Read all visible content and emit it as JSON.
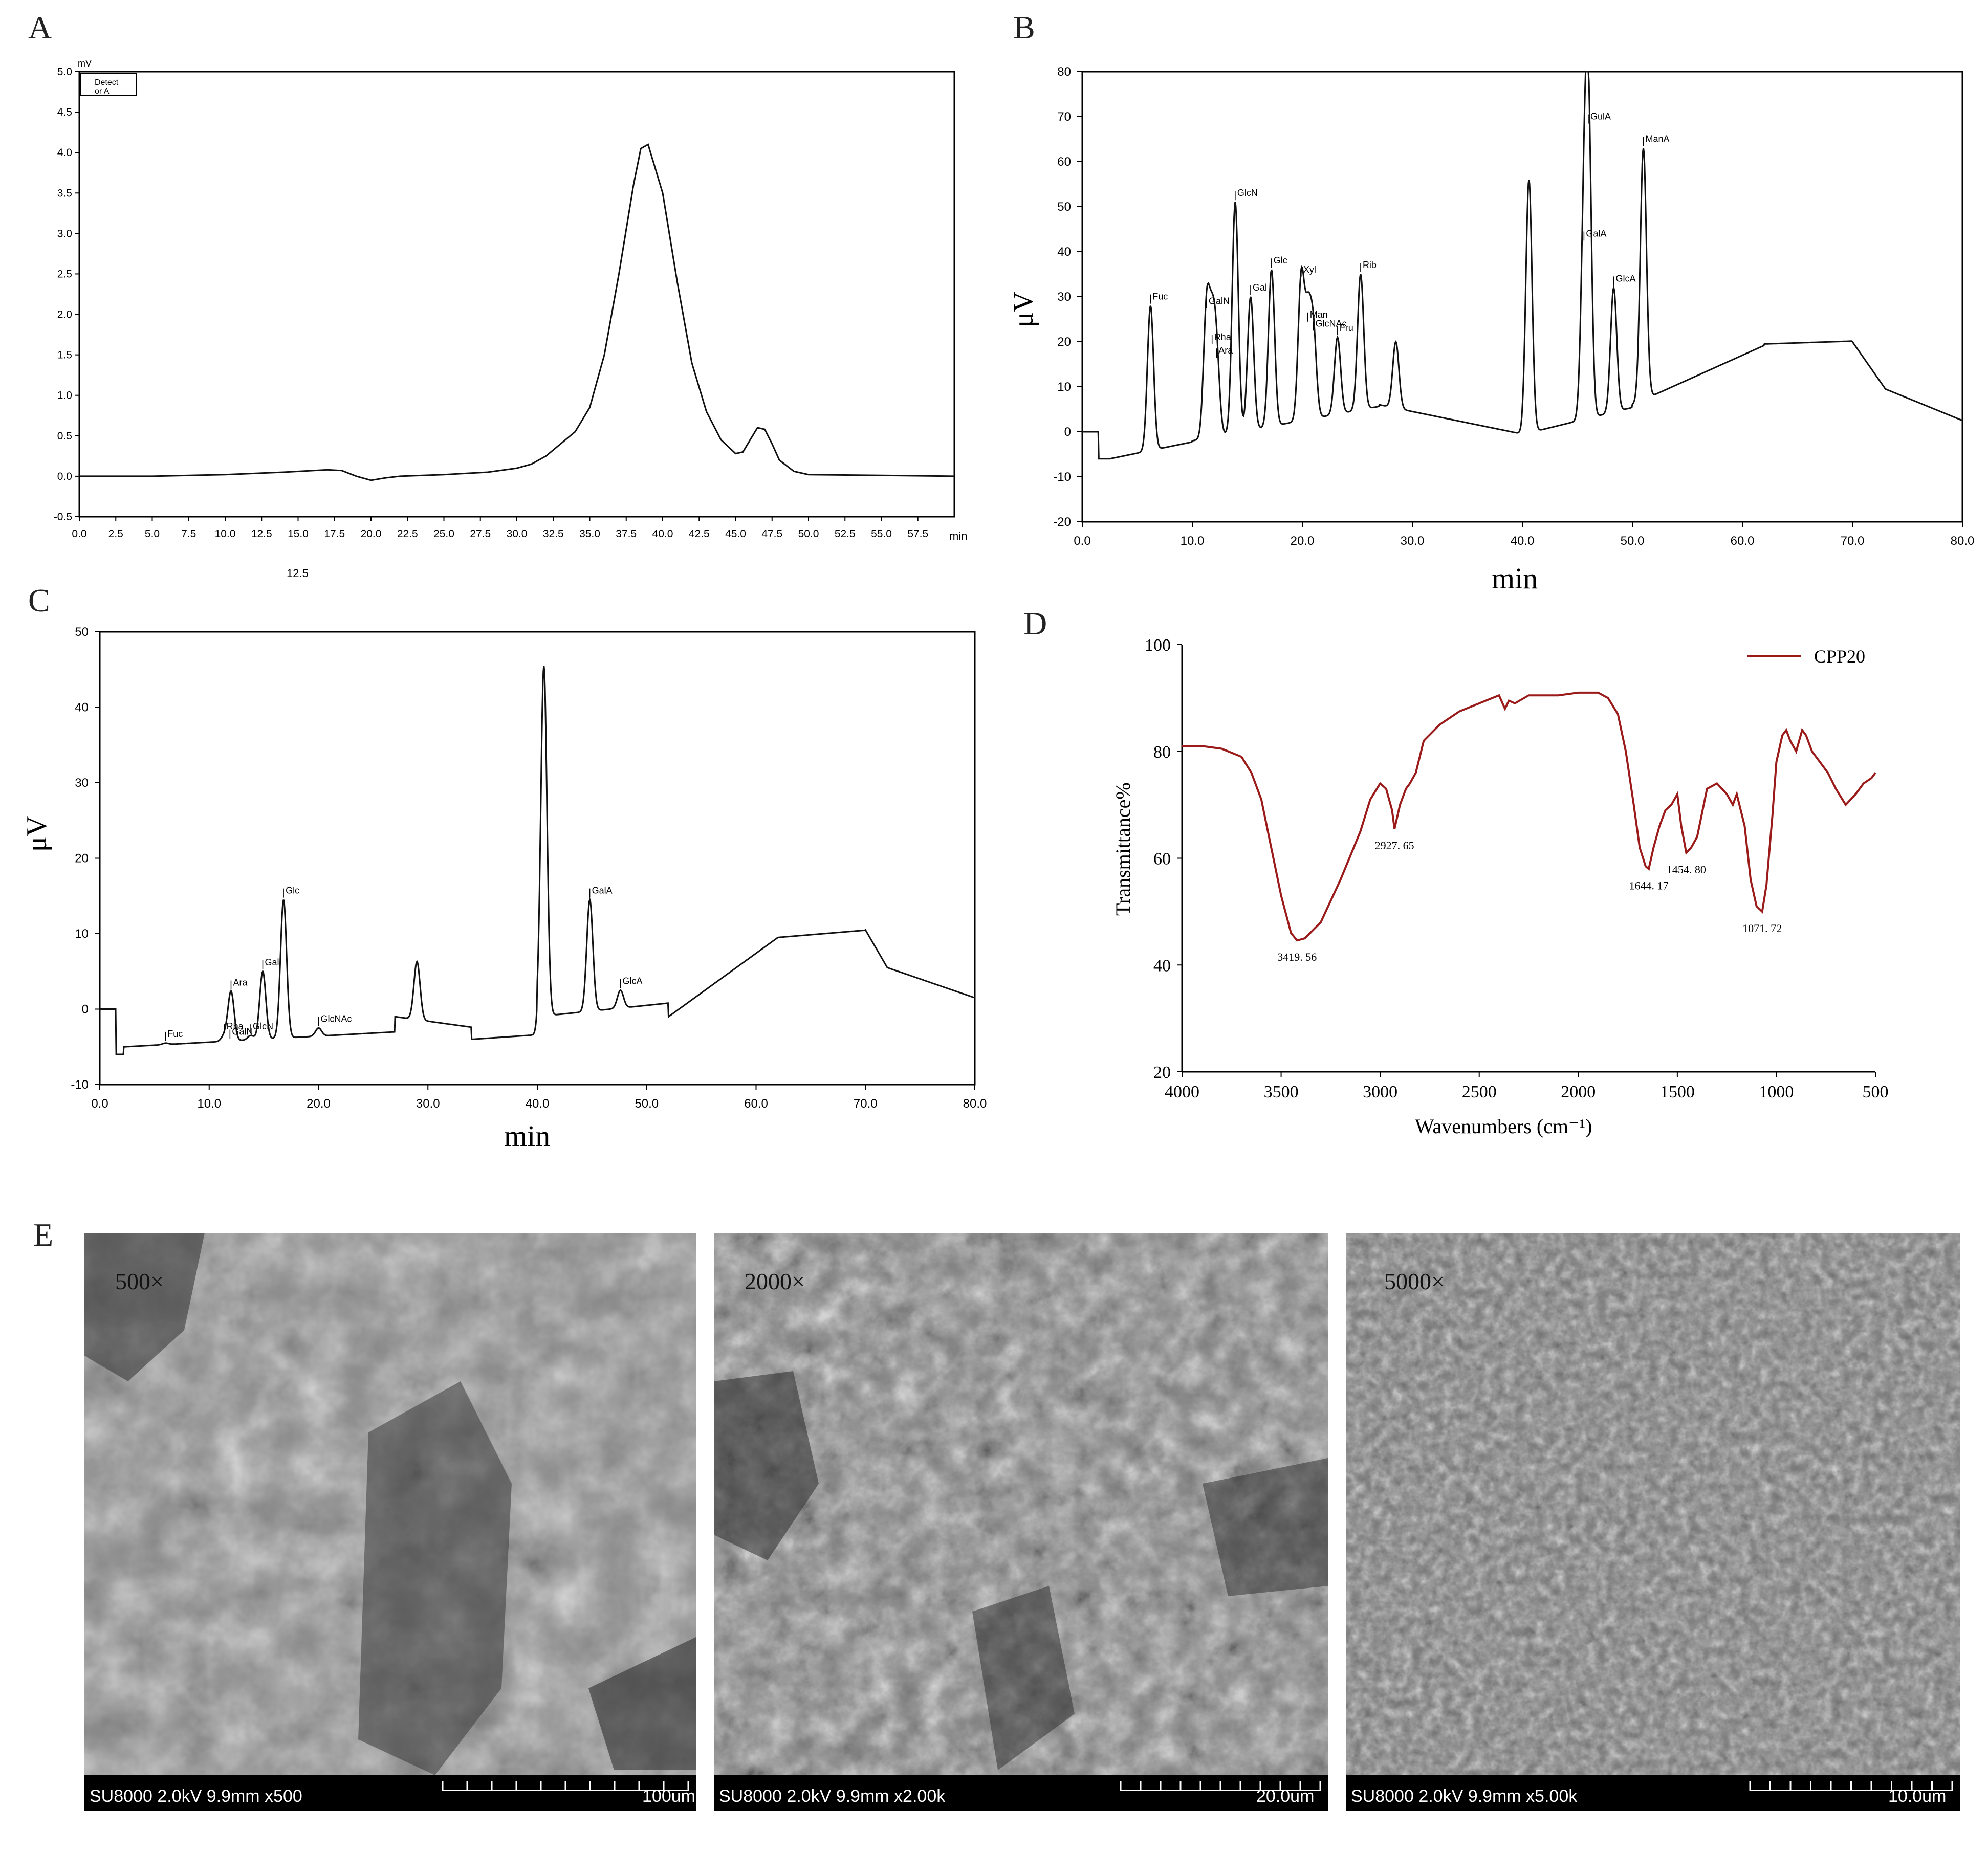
{
  "panels": {
    "A": "A",
    "B": "B",
    "C": "C",
    "D": "D",
    "E": "E"
  },
  "chart_data": [
    {
      "id": "A",
      "type": "line",
      "title": "",
      "xlabel": "min",
      "ylabel": "",
      "extra_label": "12.5",
      "unit_corner": "mV",
      "legend_box": [
        "Detect",
        "or A"
      ],
      "xlim": [
        0,
        60
      ],
      "ylim": [
        -0.5,
        5.0
      ],
      "x_ticks": [
        "0.0",
        "2.5",
        "5.0",
        "7.5",
        "10.0",
        "12.5",
        "15.0",
        "17.5",
        "20.0",
        "22.5",
        "25.0",
        "27.5",
        "30.0",
        "32.5",
        "35.0",
        "37.5",
        "40.0",
        "42.5",
        "45.0",
        "47.5",
        "50.0",
        "52.5",
        "55.0",
        "57.5"
      ],
      "y_ticks": [
        "-0.5",
        "0.0",
        "0.5",
        "1.0",
        "1.5",
        "2.0",
        "2.5",
        "3.0",
        "3.5",
        "4.0",
        "4.5",
        "5.0"
      ],
      "series": [
        {
          "x": [
            0,
            5,
            10,
            14,
            17,
            18,
            19,
            20,
            21,
            22,
            25,
            28,
            30,
            31,
            32,
            33,
            34,
            35,
            36,
            37,
            38,
            38.5,
            39,
            40,
            41,
            42,
            43,
            44,
            45,
            45.5,
            46,
            46.5,
            47,
            47.5,
            48,
            49,
            50,
            55,
            60
          ],
          "y": [
            0.0,
            0.0,
            0.02,
            0.05,
            0.08,
            0.07,
            0.0,
            -0.05,
            -0.02,
            0.0,
            0.02,
            0.05,
            0.1,
            0.15,
            0.25,
            0.4,
            0.55,
            0.85,
            1.5,
            2.5,
            3.6,
            4.05,
            4.1,
            3.5,
            2.4,
            1.4,
            0.8,
            0.45,
            0.28,
            0.3,
            0.45,
            0.6,
            0.58,
            0.4,
            0.2,
            0.06,
            0.02,
            0.01,
            0.0
          ]
        }
      ]
    },
    {
      "id": "B",
      "type": "line",
      "title": "",
      "xlabel": "min",
      "ylabel": "μV",
      "xlim": [
        0,
        80
      ],
      "ylim": [
        -20,
        80
      ],
      "x_ticks": [
        "0.0",
        "10.0",
        "20.0",
        "30.0",
        "40.0",
        "50.0",
        "60.0",
        "70.0",
        "80.0"
      ],
      "y_ticks": [
        "-20",
        "-10",
        "0",
        "10",
        "20",
        "30",
        "40",
        "50",
        "60",
        "70",
        "80"
      ],
      "peaks": [
        {
          "label": "Fuc",
          "x": 6.2,
          "y": 28
        },
        {
          "label": "GalN",
          "x": 11.3,
          "y": 27
        },
        {
          "label": "Rha",
          "x": 11.8,
          "y": 19
        },
        {
          "label": "Ara",
          "x": 12.2,
          "y": 16
        },
        {
          "label": "GlcN",
          "x": 13.9,
          "y": 51
        },
        {
          "label": "Gal",
          "x": 15.3,
          "y": 30
        },
        {
          "label": "Glc",
          "x": 17.2,
          "y": 36
        },
        {
          "label": "Xyl",
          "x": 19.9,
          "y": 34
        },
        {
          "label": "Man",
          "x": 20.5,
          "y": 24
        },
        {
          "label": "GlcNAc",
          "x": 21.0,
          "y": 22
        },
        {
          "label": "Fru",
          "x": 23.2,
          "y": 21
        },
        {
          "label": "Rib",
          "x": 25.3,
          "y": 35
        },
        {
          "label": "GalA",
          "x": 45.6,
          "y": 42
        },
        {
          "label": "GulA",
          "x": 46.0,
          "y": 68
        },
        {
          "label": "GlcA",
          "x": 48.3,
          "y": 32
        },
        {
          "label": "ManA",
          "x": 51.0,
          "y": 63
        }
      ],
      "unlabeled_peaks": [
        {
          "x": 40.6,
          "y": 56
        },
        {
          "x": 28.5,
          "y": 20
        }
      ]
    },
    {
      "id": "C",
      "type": "line",
      "title": "",
      "xlabel": "min",
      "ylabel": "μV",
      "xlim": [
        0,
        80
      ],
      "ylim": [
        -10,
        50
      ],
      "x_ticks": [
        "0.0",
        "10.0",
        "20.0",
        "30.0",
        "40.0",
        "50.0",
        "60.0",
        "70.0",
        "80.0"
      ],
      "y_ticks": [
        "-10",
        "0",
        "10",
        "20",
        "30",
        "40",
        "50"
      ],
      "peaks": [
        {
          "label": "Fuc",
          "x": 6.0,
          "y": -4.5
        },
        {
          "label": "Rha",
          "x": 11.4,
          "y": -3.5
        },
        {
          "label": "GalN",
          "x": 11.9,
          "y": -4.2
        },
        {
          "label": "Ara",
          "x": 12.0,
          "y": 2.3
        },
        {
          "label": "GlcN",
          "x": 13.8,
          "y": -3.5
        },
        {
          "label": "Gal",
          "x": 14.9,
          "y": 5.0
        },
        {
          "label": "Glc",
          "x": 16.8,
          "y": 14.5
        },
        {
          "label": "GlcNAc",
          "x": 20.0,
          "y": -2.5
        },
        {
          "label": "GalA",
          "x": 44.8,
          "y": 14.5
        },
        {
          "label": "GlcA",
          "x": 47.6,
          "y": 2.5
        }
      ],
      "unlabeled_peaks": [
        {
          "x": 40.6,
          "y": 45.5
        },
        {
          "x": 29.0,
          "y": 6.3
        }
      ]
    },
    {
      "id": "D",
      "type": "line",
      "title": "",
      "xlabel": "Wavenumbers (cm⁻¹)",
      "ylabel": "Transmittance%",
      "xlim": [
        4000,
        500
      ],
      "ylim": [
        20,
        100
      ],
      "x_ticks": [
        "4000",
        "3500",
        "3000",
        "2500",
        "2000",
        "1500",
        "1000",
        "500"
      ],
      "y_ticks": [
        "20",
        "40",
        "60",
        "80",
        "100"
      ],
      "series": [
        {
          "name": "CPP20",
          "color": "#9b1b1b",
          "x": [
            4000,
            3900,
            3800,
            3700,
            3650,
            3600,
            3550,
            3500,
            3450,
            3419.56,
            3380,
            3300,
            3200,
            3100,
            3050,
            3000,
            2970,
            2940,
            2927.65,
            2900,
            2870,
            2850,
            2820,
            2780,
            2700,
            2600,
            2500,
            2400,
            2370,
            2350,
            2320,
            2250,
            2100,
            2000,
            1900,
            1850,
            1800,
            1760,
            1720,
            1690,
            1660,
            1644.17,
            1620,
            1590,
            1560,
            1530,
            1500,
            1480,
            1454.8,
            1430,
            1400,
            1350,
            1300,
            1250,
            1220,
            1200,
            1160,
            1130,
            1100,
            1071.72,
            1050,
            1020,
            1000,
            970,
            950,
            930,
            900,
            870,
            850,
            820,
            780,
            740,
            700,
            650,
            600,
            560,
            520,
            500
          ],
          "y": [
            81,
            81,
            80.5,
            79,
            76,
            71,
            62,
            53,
            46,
            44.6,
            45,
            48,
            56,
            65,
            71,
            74,
            73,
            69,
            65.5,
            70,
            73,
            74,
            76,
            82,
            85,
            87.5,
            89,
            90.5,
            88,
            89.5,
            89,
            90.5,
            90.5,
            91,
            91,
            90,
            87,
            80,
            70,
            62,
            58.5,
            58,
            62,
            66,
            69,
            70,
            72,
            66,
            61,
            62,
            64,
            73,
            74,
            72,
            70,
            72,
            66,
            56,
            51,
            50,
            55,
            68,
            78,
            83,
            84,
            82,
            80,
            84,
            83,
            80,
            78,
            76,
            73,
            70,
            72,
            74,
            75,
            76
          ]
        }
      ],
      "annotations": [
        {
          "text": "3419. 56",
          "x": 3419.56,
          "y": 44.6
        },
        {
          "text": "2927. 65",
          "x": 2927.65,
          "y": 65.5
        },
        {
          "text": "1644. 17",
          "x": 1644.17,
          "y": 58
        },
        {
          "text": "1454. 80",
          "x": 1454.8,
          "y": 61
        },
        {
          "text": "1071. 72",
          "x": 1071.72,
          "y": 50
        }
      ],
      "legend": "top-right"
    }
  ],
  "sem": [
    {
      "mag": "500×",
      "footer_left": "SU8000 2.0kV 9.9mm x500",
      "footer_right": "100um"
    },
    {
      "mag": "2000×",
      "footer_left": "SU8000 2.0kV 9.9mm x2.00k",
      "footer_right": "20.0um"
    },
    {
      "mag": "5000×",
      "footer_left": "SU8000 2.0kV 9.9mm x5.00k",
      "footer_right": "10.0um"
    }
  ]
}
